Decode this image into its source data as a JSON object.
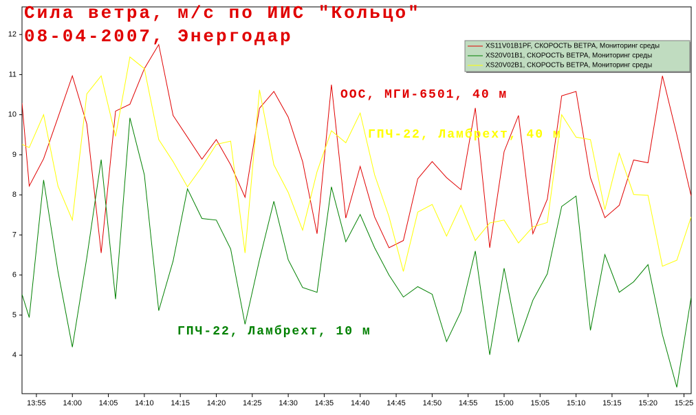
{
  "chart_data": {
    "type": "line",
    "title": "Сила ветра, м/с по ИИС \"Кольцо\"",
    "subtitle": "08-04-2007, Энергодар",
    "title_color": "#e00000",
    "annotations": [
      {
        "text": "ООС, МГИ-6501, 40 м",
        "color": "#e00000"
      },
      {
        "text": "ГПЧ-22, Ламбрехт, 40 м",
        "color": "#ffff00"
      },
      {
        "text": "ГПЧ-22, Ламбрехт, 10 м",
        "color": "#008000"
      }
    ],
    "legend": "top-right",
    "x": [
      "13:53",
      "13:54",
      "13:56",
      "13:58",
      "14:00",
      "14:02",
      "14:04",
      "14:06",
      "14:08",
      "14:10",
      "14:12",
      "14:14",
      "14:16",
      "14:18",
      "14:20",
      "14:22",
      "14:24",
      "14:26",
      "14:28",
      "14:30",
      "14:32",
      "14:34",
      "14:36",
      "14:38",
      "14:40",
      "14:42",
      "14:44",
      "14:46",
      "14:48",
      "14:50",
      "14:52",
      "14:54",
      "14:56",
      "14:58",
      "15:00",
      "15:02",
      "15:04",
      "15:06",
      "15:08",
      "15:10",
      "15:12",
      "15:14",
      "15:16",
      "15:18",
      "15:20",
      "15:22",
      "15:24",
      "15:26"
    ],
    "xlim": [
      "13:53",
      "15:26"
    ],
    "xticks": [
      "13:55",
      "14:00",
      "14:05",
      "14:10",
      "14:15",
      "14:20",
      "14:25",
      "14:30",
      "14:35",
      "14:40",
      "14:45",
      "14:50",
      "14:55",
      "15:00",
      "15:05",
      "15:10",
      "15:15",
      "15:20",
      "15:25"
    ],
    "ylim": [
      3.04,
      12.69
    ],
    "yticks": [
      4,
      5,
      6,
      7,
      8,
      9,
      10,
      11,
      12
    ],
    "series": [
      {
        "name": "XS11V01B1PF, СКОРОСТЬ ВЕТРА, Мониторинг среды",
        "color": "#e00000",
        "values": [
          10.29,
          8.22,
          8.9,
          9.93,
          10.97,
          9.77,
          6.55,
          10.09,
          10.26,
          11.15,
          11.75,
          9.98,
          9.44,
          8.89,
          9.38,
          8.75,
          7.94,
          10.16,
          10.58,
          9.94,
          8.83,
          7.03,
          10.75,
          7.42,
          8.71,
          7.45,
          6.68,
          6.86,
          8.4,
          8.83,
          8.43,
          8.13,
          10.17,
          6.68,
          9.08,
          9.98,
          7.03,
          7.89,
          10.47,
          10.58,
          8.43,
          7.43,
          7.74,
          8.87,
          8.8,
          10.97,
          9.5,
          7.97
        ]
      },
      {
        "name": "XS20V01B1, СКОРОСТЬ ВЕТРА, Мониторинг среды",
        "color": "#008000",
        "values": [
          5.52,
          4.94,
          8.37,
          6.09,
          4.2,
          6.43,
          8.88,
          5.4,
          9.92,
          8.5,
          5.11,
          6.35,
          8.15,
          7.41,
          7.37,
          6.65,
          4.77,
          6.38,
          7.84,
          6.38,
          5.69,
          5.57,
          8.2,
          6.83,
          7.51,
          6.68,
          6.0,
          5.45,
          5.71,
          5.52,
          4.34,
          5.09,
          6.6,
          4.01,
          6.17,
          4.34,
          5.37,
          6.03,
          7.71,
          7.97,
          4.62,
          6.51,
          5.57,
          5.83,
          6.26,
          4.51,
          3.2,
          5.45
        ]
      },
      {
        "name": "XS20V02B1, СКОРОСТЬ ВЕТРА, Мониторинг среды",
        "color": "#ffff00",
        "values": [
          9.26,
          9.18,
          10.0,
          8.22,
          7.37,
          10.52,
          10.97,
          9.46,
          11.44,
          11.15,
          9.38,
          8.83,
          8.2,
          8.7,
          9.26,
          9.34,
          6.55,
          10.62,
          8.75,
          8.06,
          7.12,
          8.58,
          9.6,
          9.3,
          10.04,
          8.5,
          7.46,
          6.09,
          7.57,
          7.76,
          6.97,
          7.74,
          6.86,
          7.3,
          7.37,
          6.8,
          7.2,
          7.31,
          10.0,
          9.44,
          9.38,
          7.63,
          9.04,
          8.01,
          7.99,
          6.22,
          6.37,
          7.45
        ]
      }
    ]
  }
}
